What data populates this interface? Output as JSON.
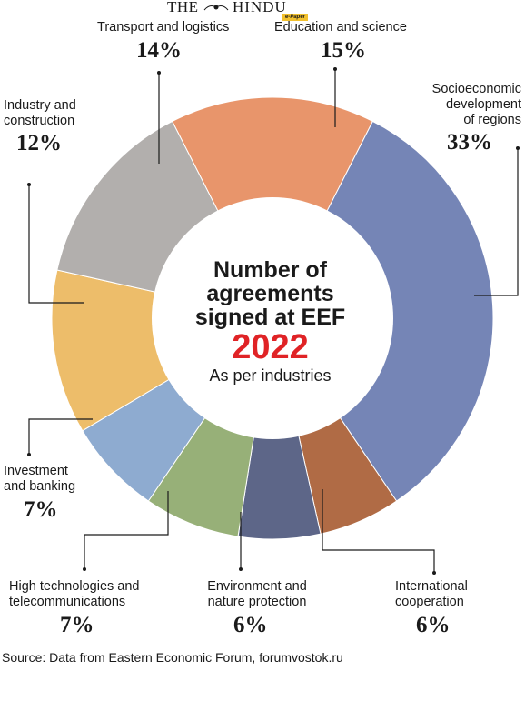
{
  "masthead": {
    "the": "THE",
    "hindu": "HINDU",
    "badge": "e-Paper"
  },
  "chart_data": {
    "type": "pie",
    "variant": "donut",
    "title_lines": [
      "Number of",
      "agreements",
      "signed at EEF"
    ],
    "year": "2022",
    "subtitle": "As per industries",
    "slices": [
      {
        "label": "Education and science",
        "value": 15,
        "display": "15%",
        "color": "#e8956b"
      },
      {
        "label": "Socioeconomic development of regions",
        "value": 33,
        "display": "33%",
        "color": "#7585b6"
      },
      {
        "label": "International cooperation",
        "value": 6,
        "display": "6%",
        "color": "#b06b45"
      },
      {
        "label": "Environment and nature protection",
        "value": 6,
        "display": "6%",
        "color": "#5d6688"
      },
      {
        "label": "High technologies and telecommunications",
        "value": 7,
        "display": "7%",
        "color": "#97b078"
      },
      {
        "label": "Investment and banking",
        "value": 7,
        "display": "7%",
        "color": "#8eabd0"
      },
      {
        "label": "Industry and construction",
        "value": 12,
        "display": "12%",
        "color": "#edbd6a"
      },
      {
        "label": "Transport and logistics",
        "value": 14,
        "display": "14%",
        "color": "#b2afad"
      }
    ]
  },
  "labels": {
    "education": {
      "line1": "Education and science",
      "pct": "15%"
    },
    "socio": {
      "line1": "Socioeconomic",
      "line2": "development",
      "line3": "of regions",
      "pct": "33%"
    },
    "intl": {
      "line1": "International",
      "line2": "cooperation",
      "pct": "6%"
    },
    "env": {
      "line1": "Environment and",
      "line2": "nature protection",
      "pct": "6%"
    },
    "hightech": {
      "line1": "High technologies and",
      "line2": "telecommunications",
      "pct": "7%"
    },
    "invest": {
      "line1": "Investment",
      "line2": "and banking",
      "pct": "7%"
    },
    "industry": {
      "line1": "Industry and",
      "line2": "construction",
      "pct": "12%"
    },
    "transport": {
      "line1": "Transport and logistics",
      "pct": "14%"
    }
  },
  "source": "Source: Data from Eastern Economic Forum, forumvostok.ru"
}
